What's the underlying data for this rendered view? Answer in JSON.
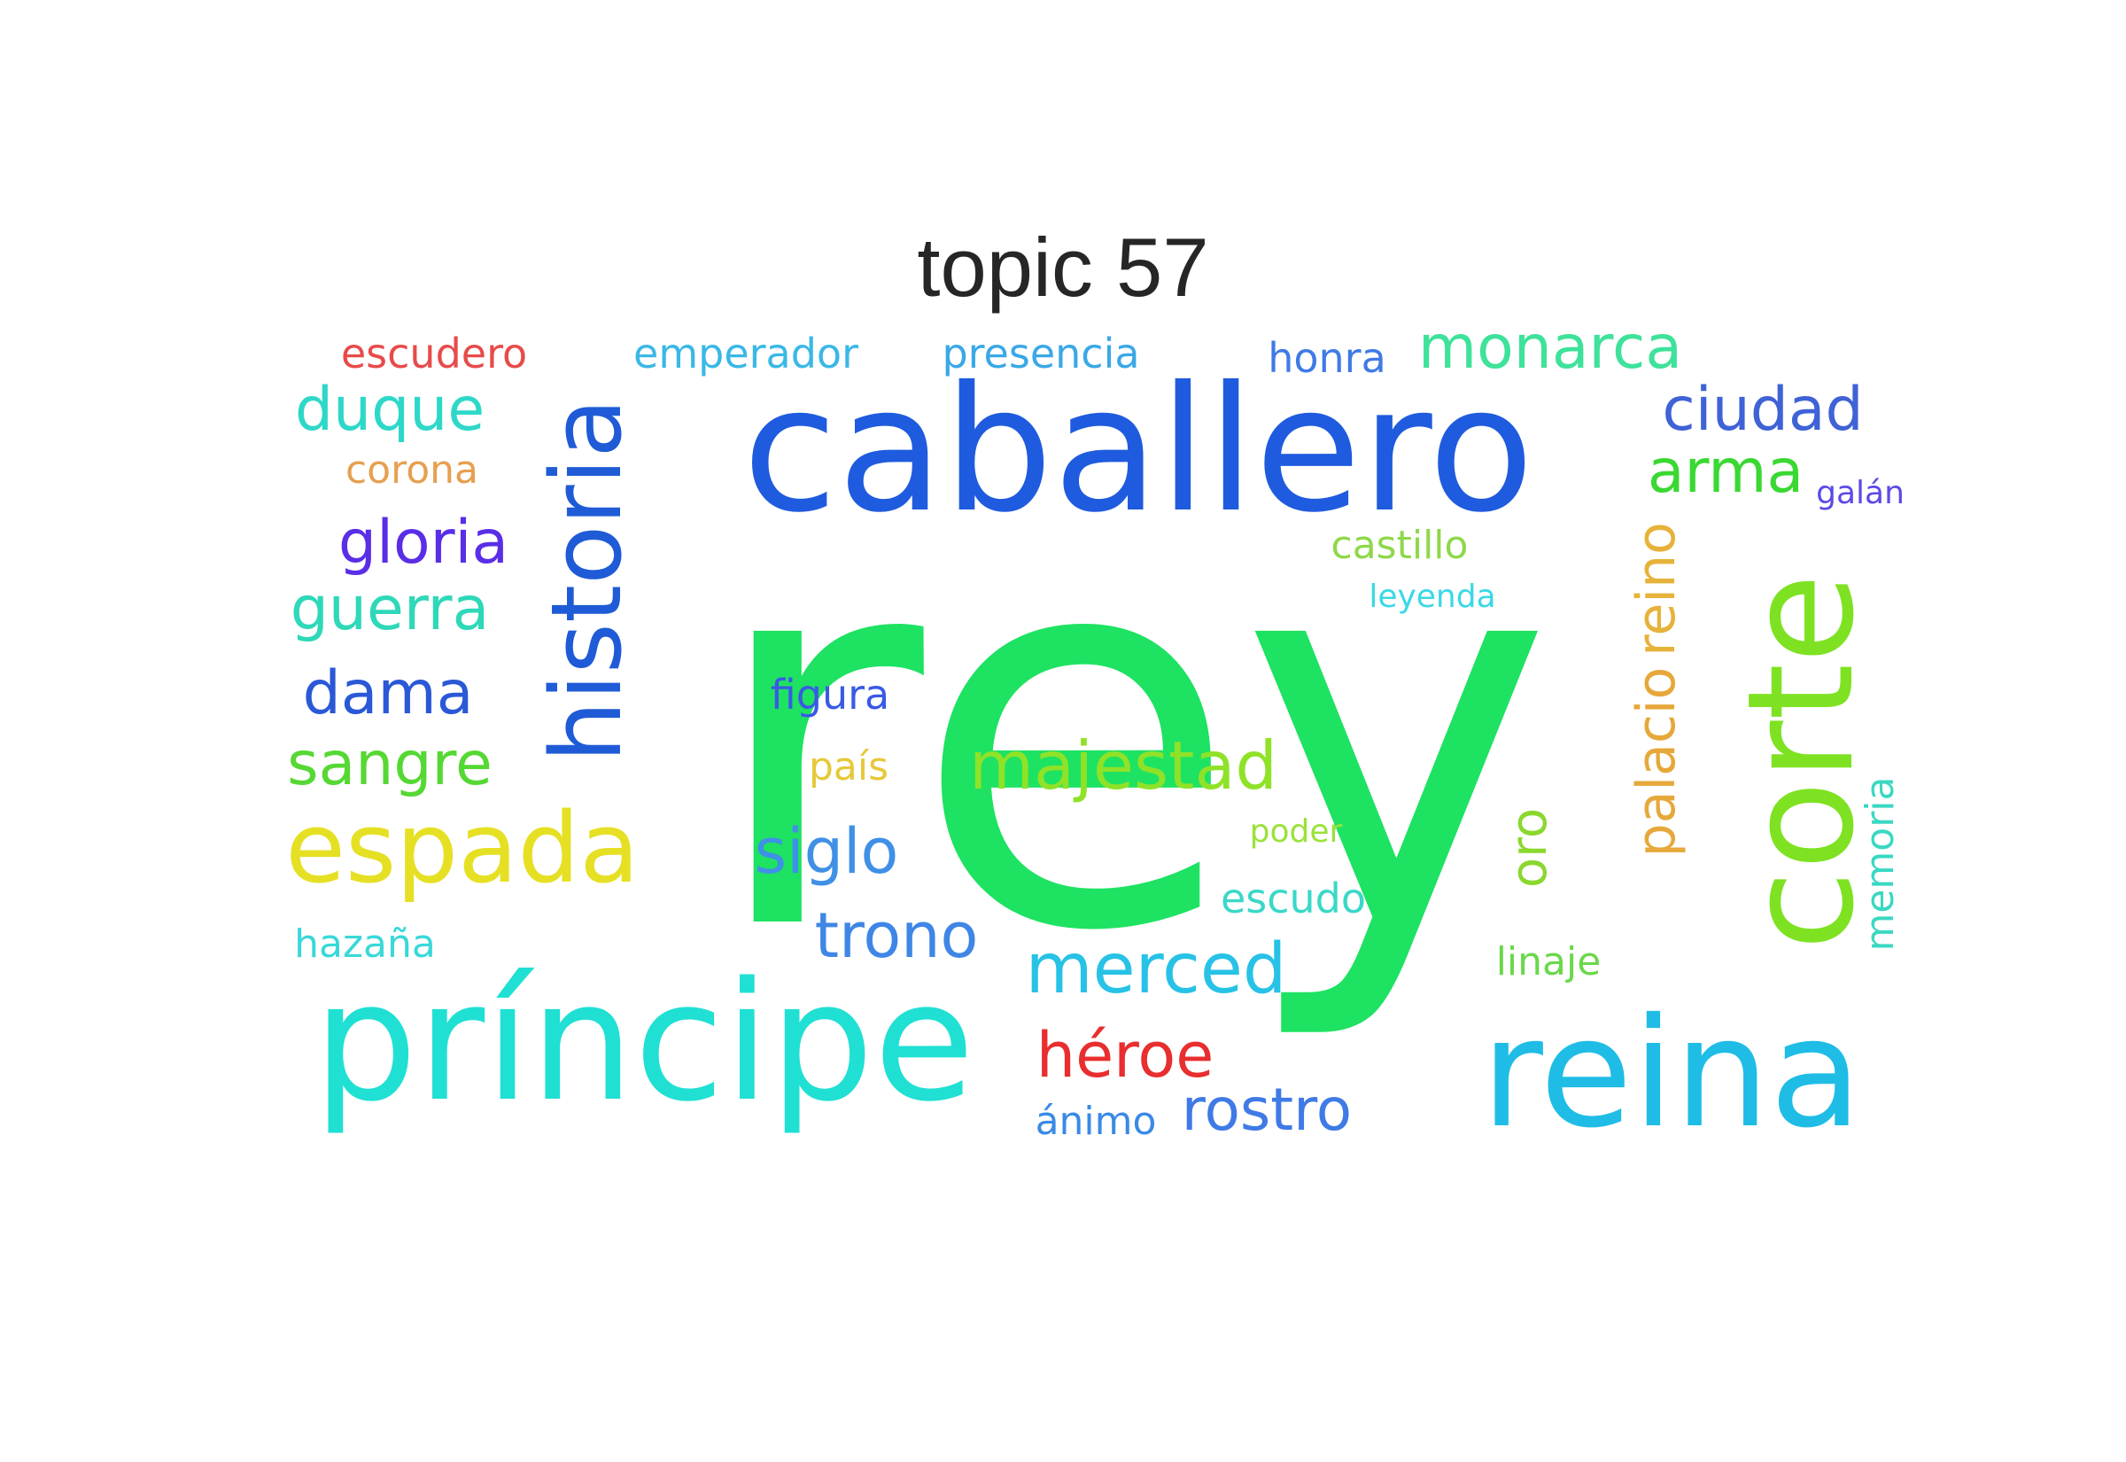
{
  "title": "topic 57",
  "words": [
    {
      "text": "rey",
      "color": "#1ee262"
    },
    {
      "text": "caballero",
      "color": "#1f5bde"
    },
    {
      "text": "príncipe",
      "color": "#1fe0d3"
    },
    {
      "text": "reina",
      "color": "#1fbde6"
    },
    {
      "text": "corte",
      "color": "#7ee222"
    },
    {
      "text": "historia",
      "color": "#1f5bd6"
    },
    {
      "text": "espada",
      "color": "#e6e024"
    },
    {
      "text": "majestad",
      "color": "#8fe228"
    },
    {
      "text": "merced",
      "color": "#28c2e6"
    },
    {
      "text": "trono",
      "color": "#3f86e6"
    },
    {
      "text": "siglo",
      "color": "#3f90e6"
    },
    {
      "text": "héroe",
      "color": "#e82e2e"
    },
    {
      "text": "rostro",
      "color": "#3f7ae6"
    },
    {
      "text": "sangre",
      "color": "#56d834"
    },
    {
      "text": "dama",
      "color": "#2a58d6"
    },
    {
      "text": "guerra",
      "color": "#2ed8b8"
    },
    {
      "text": "gloria",
      "color": "#5a2ee6"
    },
    {
      "text": "duque",
      "color": "#2ed8c8"
    },
    {
      "text": "monarca",
      "color": "#3ee29a"
    },
    {
      "text": "ciudad",
      "color": "#3f62d6"
    },
    {
      "text": "arma",
      "color": "#3ad832"
    },
    {
      "text": "palacio",
      "color": "#e6a83a"
    },
    {
      "text": "reino",
      "color": "#e6b23a"
    },
    {
      "text": "oro",
      "color": "#8ad82e"
    },
    {
      "text": "memoria",
      "color": "#3ad8c2"
    },
    {
      "text": "escudero",
      "color": "#e84a4a"
    },
    {
      "text": "emperador",
      "color": "#3ab8e6"
    },
    {
      "text": "presencia",
      "color": "#3aa8e6"
    },
    {
      "text": "honra",
      "color": "#3f7ae6"
    },
    {
      "text": "corona",
      "color": "#e6a050"
    },
    {
      "text": "galán",
      "color": "#5a4ae6"
    },
    {
      "text": "castillo",
      "color": "#8ed84a"
    },
    {
      "text": "leyenda",
      "color": "#3ad8e6"
    },
    {
      "text": "figura",
      "color": "#3a5ae6"
    },
    {
      "text": "país",
      "color": "#e6c83a"
    },
    {
      "text": "poder",
      "color": "#9ae23a"
    },
    {
      "text": "escudo",
      "color": "#3ad8c8"
    },
    {
      "text": "linaje",
      "color": "#6ad84a"
    },
    {
      "text": "hazaña",
      "color": "#3ad8d8"
    },
    {
      "text": "ánimo",
      "color": "#3a8ae6"
    }
  ]
}
